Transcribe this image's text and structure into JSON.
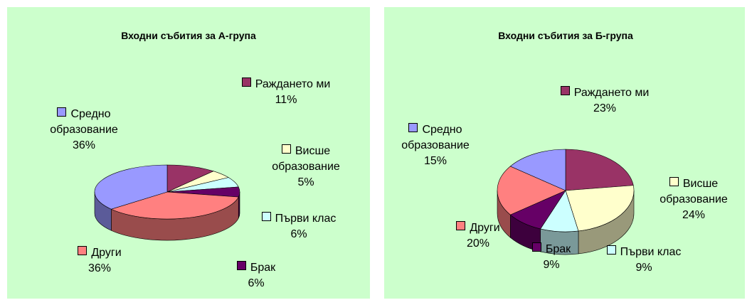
{
  "chart_data": [
    {
      "type": "pie",
      "title": "Входни събития за А-група",
      "categories": [
        "Раждането ми",
        "Висше образование",
        "Първи клас",
        "Брак",
        "Други",
        "Средно образование"
      ],
      "values": [
        11,
        5,
        6,
        6,
        36,
        36
      ],
      "value_labels": [
        "11%",
        "5%",
        "6%",
        "6%",
        "36%",
        "36%"
      ],
      "colors": [
        "#993366",
        "#ffffcc",
        "#ccffff",
        "#660066",
        "#ff8080",
        "#9999ff"
      ]
    },
    {
      "type": "pie",
      "title": "Входни събития за Б-група",
      "categories": [
        "Раждането ми",
        "Висше образование",
        "Първи клас",
        "Брак",
        "Други",
        "Средно образование"
      ],
      "values": [
        23,
        24,
        9,
        9,
        20,
        15
      ],
      "value_labels": [
        "23%",
        "24%",
        "9%",
        "9%",
        "20%",
        "15%"
      ],
      "colors": [
        "#993366",
        "#ffffcc",
        "#ccffff",
        "#660066",
        "#ff8080",
        "#9999ff"
      ]
    }
  ]
}
